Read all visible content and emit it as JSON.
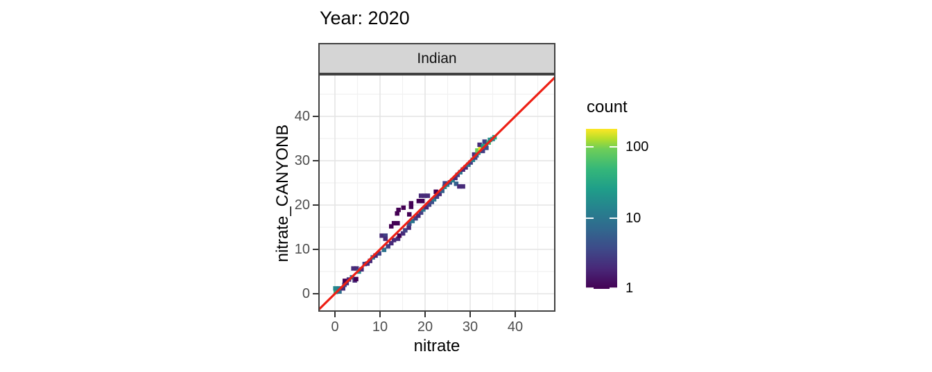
{
  "title": "Year: 2020",
  "facet": {
    "label": "Indian"
  },
  "axes": {
    "x": {
      "label": "nitrate",
      "ticks": [
        0,
        10,
        20,
        30,
        40
      ],
      "minor": [
        5,
        15,
        25,
        35,
        45
      ],
      "range": [
        -3.4,
        48.8
      ]
    },
    "y": {
      "label": "nitrate_CANYONB",
      "ticks": [
        0,
        10,
        20,
        30,
        40
      ],
      "minor": [
        5,
        15,
        25,
        35,
        45
      ],
      "range": [
        -3.9,
        49.2
      ]
    }
  },
  "legend": {
    "title": "count",
    "tick_values": [
      100,
      10,
      1
    ],
    "scale": "log10",
    "domain": [
      1,
      175
    ]
  },
  "colors": {
    "reference_line": "#ed2015",
    "strip_background": "#d5d5d5",
    "panel_border": "#404040",
    "grid_major": "#e4e4e4",
    "grid_minor": "#f1f1f1",
    "tick_text": "#4d4d4d",
    "viridis_stops": [
      {
        "t": 0.0,
        "color": "#440154"
      },
      {
        "t": 0.125,
        "color": "#482878"
      },
      {
        "t": 0.25,
        "color": "#3e4a89"
      },
      {
        "t": 0.375,
        "color": "#31688e"
      },
      {
        "t": 0.5,
        "color": "#26828e"
      },
      {
        "t": 0.625,
        "color": "#1f9e89"
      },
      {
        "t": 0.75,
        "color": "#35b779"
      },
      {
        "t": 0.875,
        "color": "#6ece58"
      },
      {
        "t": 0.9375,
        "color": "#b5de2b"
      },
      {
        "t": 1.0,
        "color": "#fde725"
      }
    ]
  },
  "chart_data": {
    "type": "heatmap",
    "subtype": "bin2d-scatter",
    "title": "Year: 2020",
    "facet_label": "Indian",
    "xlabel": "nitrate",
    "ylabel": "nitrate_CANYONB",
    "xlim": [
      -3.4,
      48.8
    ],
    "ylim": [
      -3.9,
      49.2
    ],
    "grid": true,
    "legend_position": "right",
    "color_scale": {
      "name": "viridis",
      "transform": "log10",
      "min": 1,
      "max": 175,
      "legend_title": "count"
    },
    "reference_line": {
      "type": "identity",
      "slope": 1,
      "intercept": 0,
      "color": "#ed2015"
    },
    "binwidth": 1.0,
    "bins": [
      [
        0.2,
        0.4,
        35
      ],
      [
        0.1,
        1.2,
        15
      ],
      [
        1.0,
        1.2,
        11
      ],
      [
        1.0,
        0.5,
        8
      ],
      [
        1.8,
        1.2,
        2
      ],
      [
        2.1,
        2.0,
        3
      ],
      [
        2.6,
        2.4,
        2
      ],
      [
        2.2,
        2.9,
        1
      ],
      [
        3.1,
        3.2,
        2
      ],
      [
        3.8,
        3.7,
        10
      ],
      [
        4.4,
        3.0,
        2
      ],
      [
        4.7,
        3.3,
        1
      ],
      [
        4.1,
        5.7,
        2
      ],
      [
        4.8,
        5.7,
        2
      ],
      [
        5.3,
        5.0,
        16
      ],
      [
        5.9,
        5.5,
        2
      ],
      [
        6.6,
        6.7,
        3
      ],
      [
        7.2,
        6.8,
        2
      ],
      [
        7.8,
        7.4,
        2
      ],
      [
        8.4,
        8.2,
        9
      ],
      [
        9.0,
        8.6,
        2
      ],
      [
        9.8,
        9.1,
        3
      ],
      [
        10.9,
        9.9,
        9
      ],
      [
        11.8,
        10.7,
        3
      ],
      [
        12.5,
        11.4,
        2
      ],
      [
        13.1,
        12.1,
        2
      ],
      [
        14.0,
        12.4,
        2
      ],
      [
        14.3,
        13.1,
        1
      ],
      [
        15.1,
        13.6,
        2
      ],
      [
        15.6,
        14.3,
        3
      ],
      [
        16.4,
        14.9,
        2
      ],
      [
        16.5,
        15.8,
        4
      ],
      [
        17.2,
        16.4,
        10
      ],
      [
        17.9,
        17.0,
        3
      ],
      [
        18.5,
        17.6,
        2
      ],
      [
        16.5,
        17.9,
        1
      ],
      [
        16.9,
        19.6,
        1
      ],
      [
        16.9,
        20.4,
        1
      ],
      [
        15.2,
        19.4,
        1
      ],
      [
        10.4,
        13.1,
        2
      ],
      [
        11.2,
        13.1,
        3
      ],
      [
        11.2,
        12.4,
        2
      ],
      [
        12.5,
        15.2,
        1
      ],
      [
        13.1,
        15.9,
        1
      ],
      [
        13.9,
        15.9,
        1
      ],
      [
        13.8,
        18.1,
        1
      ],
      [
        14.1,
        18.9,
        1
      ],
      [
        19.1,
        18.3,
        3
      ],
      [
        19.6,
        19.0,
        9
      ],
      [
        20.3,
        19.5,
        2
      ],
      [
        20.9,
        20.1,
        3
      ],
      [
        18.6,
        20.9,
        1
      ],
      [
        19.4,
        20.9,
        1
      ],
      [
        19.1,
        22.1,
        2
      ],
      [
        19.9,
        22.1,
        2
      ],
      [
        20.6,
        22.1,
        2
      ],
      [
        21.5,
        20.7,
        4
      ],
      [
        22.0,
        21.3,
        10
      ],
      [
        22.6,
        21.9,
        3
      ],
      [
        23.2,
        22.5,
        2
      ],
      [
        22.4,
        23.0,
        1
      ],
      [
        23.8,
        23.2,
        6
      ],
      [
        24.3,
        24.1,
        16
      ],
      [
        24.9,
        24.6,
        12
      ],
      [
        25.5,
        25.1,
        4
      ],
      [
        24.4,
        24.9,
        3
      ],
      [
        26.1,
        25.6,
        14
      ],
      [
        26.7,
        26.1,
        2
      ],
      [
        26.9,
        24.8,
        6
      ],
      [
        27.6,
        24.2,
        2
      ],
      [
        28.4,
        24.2,
        2
      ],
      [
        27.2,
        26.8,
        3
      ],
      [
        27.8,
        27.4,
        9
      ],
      [
        28.4,
        28.0,
        2
      ],
      [
        29.0,
        28.5,
        2
      ],
      [
        29.6,
        29.1,
        9
      ],
      [
        30.1,
        29.6,
        3
      ],
      [
        30.6,
        30.2,
        12
      ],
      [
        31.1,
        30.7,
        3
      ],
      [
        30.9,
        31.4,
        2
      ],
      [
        31.4,
        31.2,
        5
      ],
      [
        31.8,
        31.8,
        20
      ],
      [
        31.6,
        32.3,
        90
      ],
      [
        32.3,
        32.8,
        160
      ],
      [
        32.1,
        33.6,
        2
      ],
      [
        32.8,
        32.2,
        3
      ],
      [
        32.9,
        33.3,
        25
      ],
      [
        33.5,
        33.7,
        45
      ],
      [
        33.2,
        34.3,
        3
      ],
      [
        34.1,
        34.1,
        50
      ],
      [
        34.4,
        34.7,
        18
      ],
      [
        35.0,
        34.9,
        15
      ],
      [
        35.4,
        35.3,
        30
      ],
      [
        33.6,
        32.9,
        4
      ]
    ]
  }
}
